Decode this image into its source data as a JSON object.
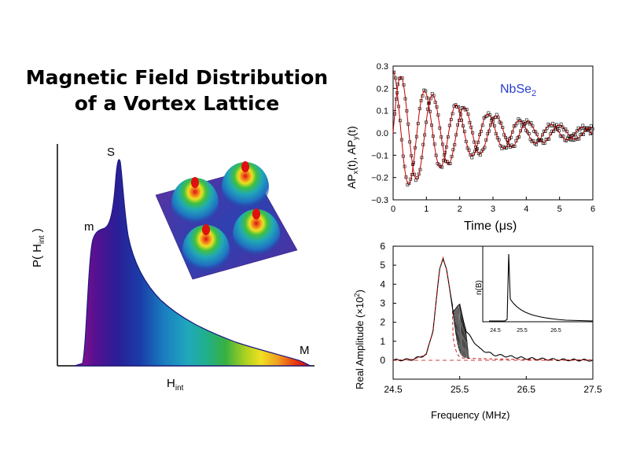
{
  "title": {
    "line1": "Magnetic Field Distribution",
    "line2": "of a Vortex Lattice"
  },
  "left_plot": {
    "ylabel_main": "P( H",
    "ylabel_sub": "int",
    "ylabel_end": " )",
    "xlabel_main": "H",
    "xlabel_sub": "int",
    "annotations": [
      "S",
      "m",
      "M"
    ],
    "inset": "vortex lattice field surface (3D, four peaks)"
  },
  "chart_data": [
    {
      "type": "area",
      "title": "",
      "xlabel": "Hint",
      "ylabel": "P(Hint)",
      "annotations": [
        {
          "text": "m",
          "meaning": "minimum field shoulder"
        },
        {
          "text": "S",
          "meaning": "saddle point peak"
        },
        {
          "text": "M",
          "meaning": "maximum field cutoff"
        }
      ],
      "x": [
        0.0,
        0.05,
        0.08,
        0.12,
        0.15,
        0.18,
        0.2,
        0.23,
        0.27,
        0.32,
        0.4,
        0.5,
        0.6,
        0.7,
        0.8,
        0.9,
        0.95,
        1.0
      ],
      "y": [
        0.0,
        0.02,
        0.45,
        0.61,
        0.63,
        0.72,
        0.98,
        0.55,
        0.37,
        0.27,
        0.18,
        0.13,
        0.1,
        0.08,
        0.06,
        0.05,
        0.03,
        0.0
      ]
    },
    {
      "type": "scatter",
      "title": "",
      "annotation": "NbSe2",
      "xlabel": "Time (μs)",
      "ylabel": "APx(t), APy(t)",
      "xlim": [
        0,
        6
      ],
      "ylim": [
        -0.3,
        0.3
      ],
      "xticks": [
        "0",
        "1",
        "2",
        "3",
        "4",
        "5",
        "6"
      ],
      "yticks": [
        "0.3",
        "0.2",
        "0.1",
        "0.0",
        "−0.1",
        "−0.2",
        "−0.3"
      ],
      "series": [
        {
          "t": [
            0.0,
            0.1,
            0.2,
            0.3,
            0.4,
            0.5,
            0.6,
            0.7,
            0.8,
            1.0,
            1.2,
            1.5,
            2.0,
            2.5,
            3.0,
            3.5,
            4.0,
            5.0,
            6.0
          ],
          "y": [
            0.28,
            0.1,
            -0.17,
            -0.25,
            -0.14,
            0.05,
            0.15,
            0.16,
            0.1,
            -0.08,
            -0.12,
            0.05,
            -0.05,
            0.05,
            -0.04,
            0.04,
            -0.02,
            0.01,
            0.0
          ]
        },
        {
          "t": [
            0.0,
            0.1,
            0.2,
            0.3,
            0.5,
            0.7,
            1.0,
            1.2,
            1.5,
            2.0,
            2.5,
            3.0,
            3.5,
            4.0,
            5.0,
            6.0
          ],
          "y": [
            0.0,
            0.2,
            0.15,
            -0.05,
            -0.22,
            -0.1,
            0.12,
            0.1,
            -0.1,
            0.02,
            0.02,
            -0.03,
            0.04,
            -0.02,
            0.01,
            0.0
          ]
        }
      ]
    },
    {
      "type": "line",
      "title": "",
      "xlabel": "Frequency (MHz)",
      "ylabel": "Real Amplitude (×10²)",
      "xlim": [
        24.5,
        27.5
      ],
      "ylim": [
        -0.5,
        6
      ],
      "xticks": [
        "24.5",
        "25.5",
        "26.5",
        "27.5"
      ],
      "yticks": [
        "6",
        "5",
        "4",
        "3",
        "2",
        "1",
        "0"
      ],
      "series": [
        {
          "x": [
            24.5,
            24.8,
            25.0,
            25.1,
            25.2,
            25.25,
            25.3,
            25.4,
            25.5,
            25.6,
            25.8,
            26.0,
            26.5,
            27.0,
            27.5
          ],
          "y": [
            0.0,
            0.05,
            0.3,
            1.6,
            4.8,
            5.4,
            4.8,
            2.6,
            2.9,
            1.5,
            0.6,
            0.3,
            0.1,
            0.03,
            0.0
          ]
        }
      ],
      "inset": {
        "ylabel": "n(B)",
        "xticks": [
          "24.5",
          "25.5",
          "26.5"
        ]
      }
    }
  ],
  "right_top_labels": {
    "annotation_main": "NbSe",
    "annotation_sub": "2",
    "xlabel": "Time (μs)",
    "ylabel_parts": [
      "AP",
      "x",
      "(t), AP",
      "y",
      "(t)"
    ]
  },
  "right_bottom_labels": {
    "xlabel": "Frequency (MHz)",
    "ylabel_main": "Real Amplitude (×10",
    "ylabel_sup": "2",
    "ylabel_end": ")",
    "inset_ylabel": "n(B)",
    "inset_xticks": [
      "24.5",
      "25.5",
      "26.5"
    ]
  },
  "colors": {
    "fit_line": "#c00000",
    "annotation": "#2a3ccc",
    "spectrum": [
      "#7a0a88",
      "#2a1a90",
      "#1a3aa0",
      "#1a80c0",
      "#20a8b8",
      "#28b078",
      "#40b040",
      "#a8d020",
      "#f0e020",
      "#f0a020",
      "#e84010",
      "#d00010"
    ]
  }
}
